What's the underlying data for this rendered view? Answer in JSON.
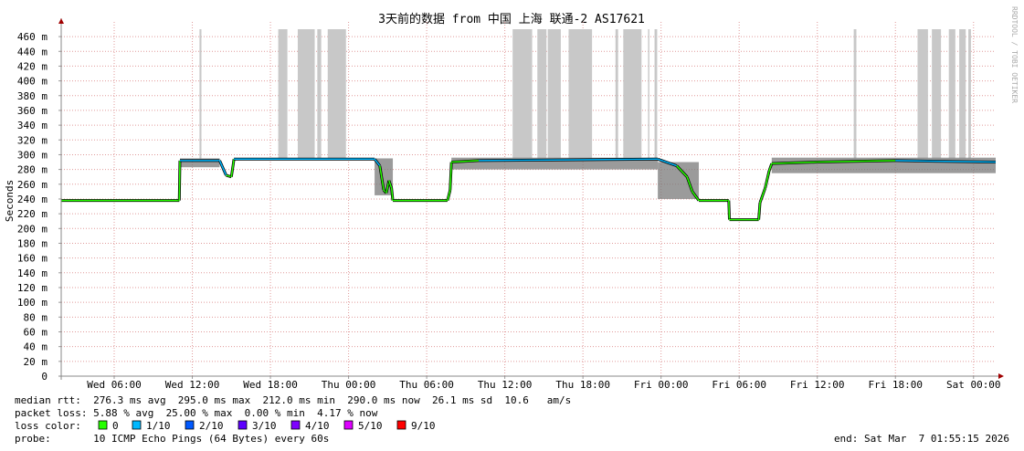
{
  "chart_data": {
    "type": "smokeping",
    "title": "3天前的数据 from 中国 上海 联通-2 AS17621",
    "y_label": "Seconds",
    "watermark": "RRDTOOL / TOBI OETIKER",
    "xlim": [
      1.93,
      73.7
    ],
    "ylim": [
      0,
      0.47
    ],
    "xticks": [
      {
        "value": 6,
        "label": "Wed 06:00"
      },
      {
        "value": 12,
        "label": "Wed 12:00"
      },
      {
        "value": 18,
        "label": "Wed 18:00"
      },
      {
        "value": 24,
        "label": "Thu 00:00"
      },
      {
        "value": 30,
        "label": "Thu 06:00"
      },
      {
        "value": 36,
        "label": "Thu 12:00"
      },
      {
        "value": 42,
        "label": "Thu 18:00"
      },
      {
        "value": 48,
        "label": "Fri 00:00"
      },
      {
        "value": 54,
        "label": "Fri 06:00"
      },
      {
        "value": 60,
        "label": "Fri 12:00"
      },
      {
        "value": 66,
        "label": "Fri 18:00"
      },
      {
        "value": 72,
        "label": "Sat 00:00"
      }
    ],
    "yticks": [
      0,
      {
        "value": 0.02,
        "label": "20 m"
      },
      {
        "value": 0.04,
        "label": "40 m"
      },
      {
        "value": 0.06,
        "label": "60 m"
      },
      {
        "value": 0.08,
        "label": "80 m"
      },
      {
        "value": 0.1,
        "label": "100 m"
      },
      {
        "value": 0.12,
        "label": "120 m"
      },
      {
        "value": 0.14,
        "label": "140 m"
      },
      {
        "value": 0.16,
        "label": "160 m"
      },
      {
        "value": 0.18,
        "label": "180 m"
      },
      {
        "value": 0.2,
        "label": "200 m"
      },
      {
        "value": 0.22,
        "label": "220 m"
      },
      {
        "value": 0.24,
        "label": "240 m"
      },
      {
        "value": 0.26,
        "label": "260 m"
      },
      {
        "value": 0.28,
        "label": "280 m"
      },
      {
        "value": 0.3,
        "label": "300 m"
      },
      {
        "value": 0.32,
        "label": "320 m"
      },
      {
        "value": 0.34,
        "label": "340 m"
      },
      {
        "value": 0.36,
        "label": "360 m"
      },
      {
        "value": 0.38,
        "label": "380 m"
      },
      {
        "value": 0.4,
        "label": "400 m"
      },
      {
        "value": 0.42,
        "label": "420 m"
      },
      {
        "value": 0.44,
        "label": "440 m"
      },
      {
        "value": 0.46,
        "label": "460 m"
      }
    ],
    "grid": true,
    "smoke": {
      "color": "#c8c8c8",
      "x0": [
        12.55,
        18.6,
        20.1,
        21.6,
        22.4,
        36.6,
        38.5,
        39.3,
        40.9,
        44.5,
        45.1,
        47.0,
        47.5,
        62.8,
        67.7,
        68.8,
        70.1,
        70.9,
        71.6
      ],
      "x1": [
        12.7,
        19.3,
        21.4,
        21.9,
        23.8,
        38.1,
        39.2,
        40.3,
        42.7,
        44.7,
        46.5,
        47.1,
        47.7,
        63.0,
        68.5,
        69.5,
        70.6,
        71.4,
        71.8
      ],
      "low": [
        0.295,
        0.295,
        0.295,
        0.295,
        0.295,
        0.295,
        0.295,
        0.295,
        0.295,
        0.295,
        0.295,
        0.295,
        0.295,
        0.295,
        0.295,
        0.295,
        0.295,
        0.295,
        0.295
      ],
      "high": [
        0.47,
        0.47,
        0.47,
        0.47,
        0.47,
        0.47,
        0.47,
        0.47,
        0.47,
        0.47,
        0.47,
        0.47,
        0.47,
        0.47,
        0.47,
        0.47,
        0.47,
        0.47,
        0.47
      ]
    },
    "spread": {
      "color": "#7a7a7a",
      "x0": [
        11.05,
        26.0,
        31.9,
        47.75,
        56.5
      ],
      "x1": [
        14.1,
        27.4,
        47.75,
        50.9,
        73.7
      ],
      "low": [
        0.283,
        0.245,
        0.28,
        0.24,
        0.275
      ],
      "high": [
        0.295,
        0.295,
        0.296,
        0.29,
        0.296
      ]
    },
    "median": {
      "x": [
        1.93,
        11.0,
        11.05,
        14.1,
        14.6,
        15.0,
        15.2,
        26.0,
        26.4,
        26.7,
        26.9,
        27.1,
        27.3,
        27.4,
        31.6,
        31.8,
        31.9,
        34,
        47.75,
        49.2,
        50.0,
        50.4,
        50.9,
        53.2,
        53.25,
        55.5,
        55.6,
        56.0,
        56.3,
        56.5,
        60,
        66,
        73.7
      ],
      "values": [
        0.238,
        0.238,
        0.292,
        0.292,
        0.272,
        0.27,
        0.294,
        0.294,
        0.285,
        0.252,
        0.248,
        0.265,
        0.255,
        0.238,
        0.238,
        0.252,
        0.29,
        0.292,
        0.294,
        0.285,
        0.27,
        0.25,
        0.238,
        0.238,
        0.212,
        0.212,
        0.235,
        0.255,
        0.278,
        0.288,
        0.29,
        0.292,
        0.29
      ],
      "loss": [
        "0",
        "0",
        "1/10",
        "1/10",
        "0",
        "0",
        "1/10",
        "1/10",
        "0",
        "0",
        "0",
        "0",
        "0",
        "0",
        "0",
        "0",
        "0",
        "1/10",
        "1/10",
        "0",
        "0",
        "0",
        "0",
        "0",
        "0",
        "0",
        "0",
        "0",
        "0",
        "0",
        "0",
        "1/10",
        "1/10"
      ]
    },
    "stats": [
      "median rtt:  276.3 ms avg  295.0 ms max  212.0 ms min  290.0 ms now  26.1 ms sd  10.6   am/s",
      "packet loss: 5.88 % avg  25.00 % max  0.00 % min  4.17 % now"
    ],
    "legend_title": "loss color:",
    "legend": [
      {
        "name": "0",
        "color": "#26ff00"
      },
      {
        "name": "1/10",
        "color": "#00b8ff"
      },
      {
        "name": "2/10",
        "color": "#0059ff"
      },
      {
        "name": "3/10",
        "color": "#5e00ff"
      },
      {
        "name": "4/10",
        "color": "#7e00ff"
      },
      {
        "name": "5/10",
        "color": "#dd00ff"
      },
      {
        "name": "9/10",
        "color": "#ff0000"
      }
    ],
    "probe": "probe:       10 ICMP Echo Pings (64 Bytes) every 60s",
    "end": "end: Sat Mar  7 01:55:15 2026"
  }
}
